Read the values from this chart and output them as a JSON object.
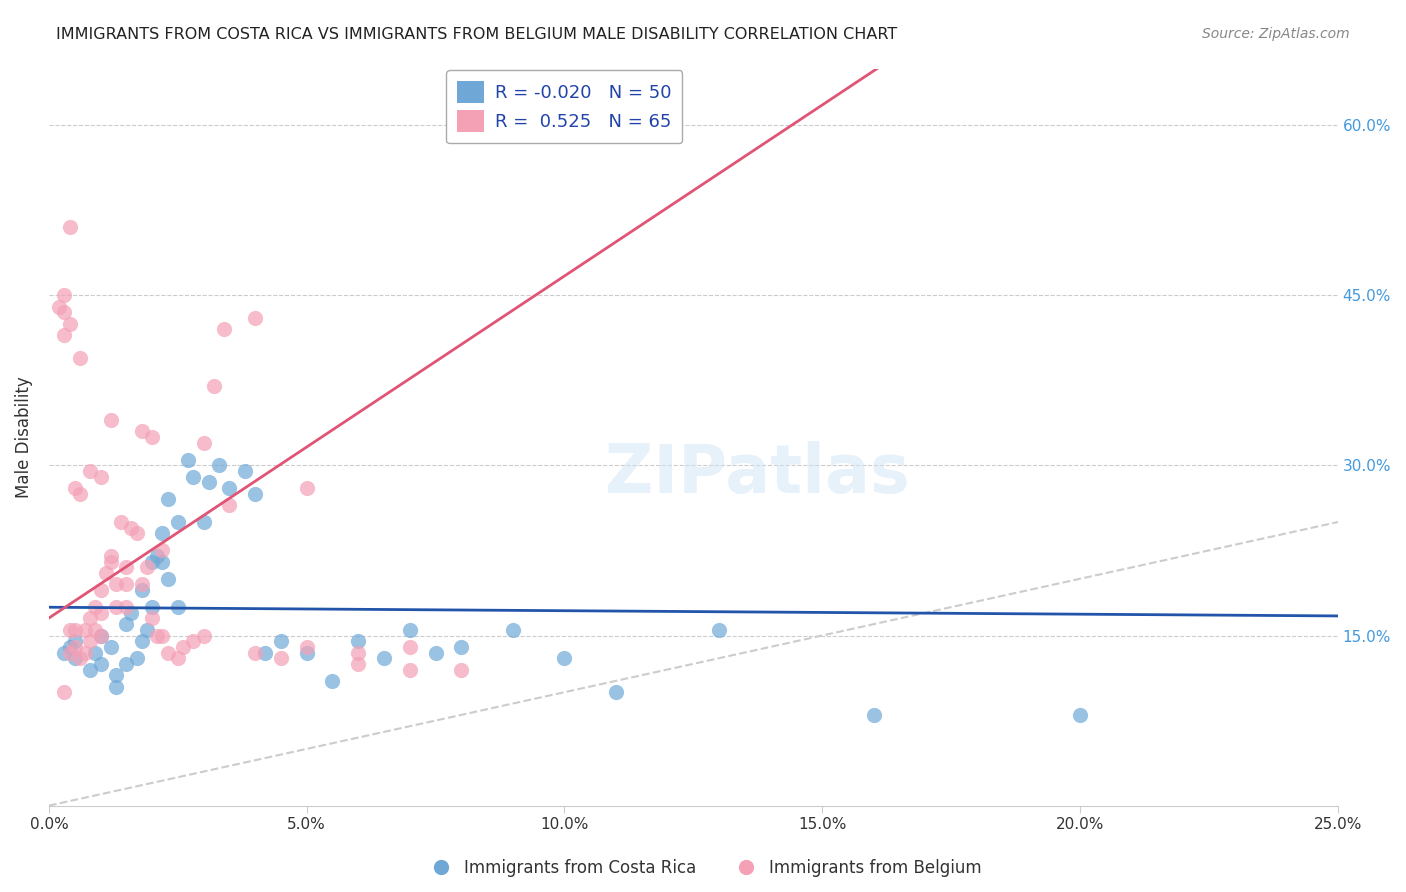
{
  "title": "IMMIGRANTS FROM COSTA RICA VS IMMIGRANTS FROM BELGIUM MALE DISABILITY CORRELATION CHART",
  "source": "Source: ZipAtlas.com",
  "ylabel": "Male Disability",
  "xlabel_bottom": "",
  "xlim": [
    0.0,
    0.25
  ],
  "ylim": [
    0.0,
    0.65
  ],
  "xticks": [
    0.0,
    0.05,
    0.1,
    0.15,
    0.2,
    0.25
  ],
  "yticks": [
    0.15,
    0.3,
    0.45,
    0.6
  ],
  "xticklabels": [
    "0.0%",
    "5.0%",
    "10.0%",
    "15.0%",
    "20.0%",
    "25.0%"
  ],
  "yticklabels_right": [
    "15.0%",
    "30.0%",
    "45.0%",
    "60.0%"
  ],
  "blue_R": -0.02,
  "blue_N": 50,
  "pink_R": 0.525,
  "pink_N": 65,
  "legend_label_blue": "Immigrants from Costa Rica",
  "legend_label_pink": "Immigrants from Belgium",
  "blue_color": "#6fa8d6",
  "pink_color": "#f4a0b5",
  "blue_line_color": "#2255aa",
  "pink_line_color": "#e05575",
  "diagonal_color": "#cccccc",
  "watermark": "ZIPatlas",
  "blue_scatter_x": [
    0.005,
    0.005,
    0.008,
    0.009,
    0.01,
    0.01,
    0.012,
    0.013,
    0.013,
    0.015,
    0.015,
    0.016,
    0.017,
    0.018,
    0.018,
    0.019,
    0.02,
    0.02,
    0.021,
    0.022,
    0.022,
    0.023,
    0.023,
    0.025,
    0.025,
    0.027,
    0.028,
    0.03,
    0.031,
    0.033,
    0.035,
    0.038,
    0.04,
    0.042,
    0.045,
    0.05,
    0.055,
    0.06,
    0.065,
    0.07,
    0.075,
    0.08,
    0.09,
    0.1,
    0.11,
    0.13,
    0.16,
    0.2,
    0.003,
    0.004
  ],
  "blue_scatter_y": [
    0.145,
    0.13,
    0.12,
    0.135,
    0.125,
    0.15,
    0.14,
    0.105,
    0.115,
    0.16,
    0.125,
    0.17,
    0.13,
    0.145,
    0.19,
    0.155,
    0.215,
    0.175,
    0.22,
    0.215,
    0.24,
    0.2,
    0.27,
    0.25,
    0.175,
    0.305,
    0.29,
    0.25,
    0.285,
    0.3,
    0.28,
    0.295,
    0.275,
    0.135,
    0.145,
    0.135,
    0.11,
    0.145,
    0.13,
    0.155,
    0.135,
    0.14,
    0.155,
    0.13,
    0.1,
    0.155,
    0.08,
    0.08,
    0.135,
    0.14
  ],
  "pink_scatter_x": [
    0.002,
    0.003,
    0.003,
    0.004,
    0.004,
    0.005,
    0.005,
    0.006,
    0.006,
    0.007,
    0.007,
    0.008,
    0.008,
    0.009,
    0.009,
    0.01,
    0.01,
    0.01,
    0.011,
    0.012,
    0.012,
    0.013,
    0.013,
    0.014,
    0.015,
    0.015,
    0.016,
    0.017,
    0.018,
    0.019,
    0.02,
    0.021,
    0.022,
    0.023,
    0.025,
    0.026,
    0.028,
    0.03,
    0.032,
    0.034,
    0.04,
    0.045,
    0.05,
    0.06,
    0.07,
    0.08,
    0.004,
    0.003,
    0.006,
    0.008,
    0.01,
    0.012,
    0.015,
    0.018,
    0.02,
    0.022,
    0.03,
    0.035,
    0.04,
    0.05,
    0.06,
    0.07,
    0.005,
    0.003,
    0.004
  ],
  "pink_scatter_y": [
    0.44,
    0.45,
    0.435,
    0.425,
    0.155,
    0.28,
    0.14,
    0.275,
    0.13,
    0.135,
    0.155,
    0.145,
    0.165,
    0.175,
    0.155,
    0.17,
    0.15,
    0.19,
    0.205,
    0.215,
    0.22,
    0.195,
    0.175,
    0.25,
    0.175,
    0.195,
    0.245,
    0.24,
    0.195,
    0.21,
    0.165,
    0.15,
    0.15,
    0.135,
    0.13,
    0.14,
    0.145,
    0.15,
    0.37,
    0.42,
    0.135,
    0.13,
    0.14,
    0.125,
    0.12,
    0.12,
    0.51,
    0.415,
    0.395,
    0.295,
    0.29,
    0.34,
    0.21,
    0.33,
    0.325,
    0.225,
    0.32,
    0.265,
    0.43,
    0.28,
    0.135,
    0.14,
    0.155,
    0.1,
    0.135
  ]
}
